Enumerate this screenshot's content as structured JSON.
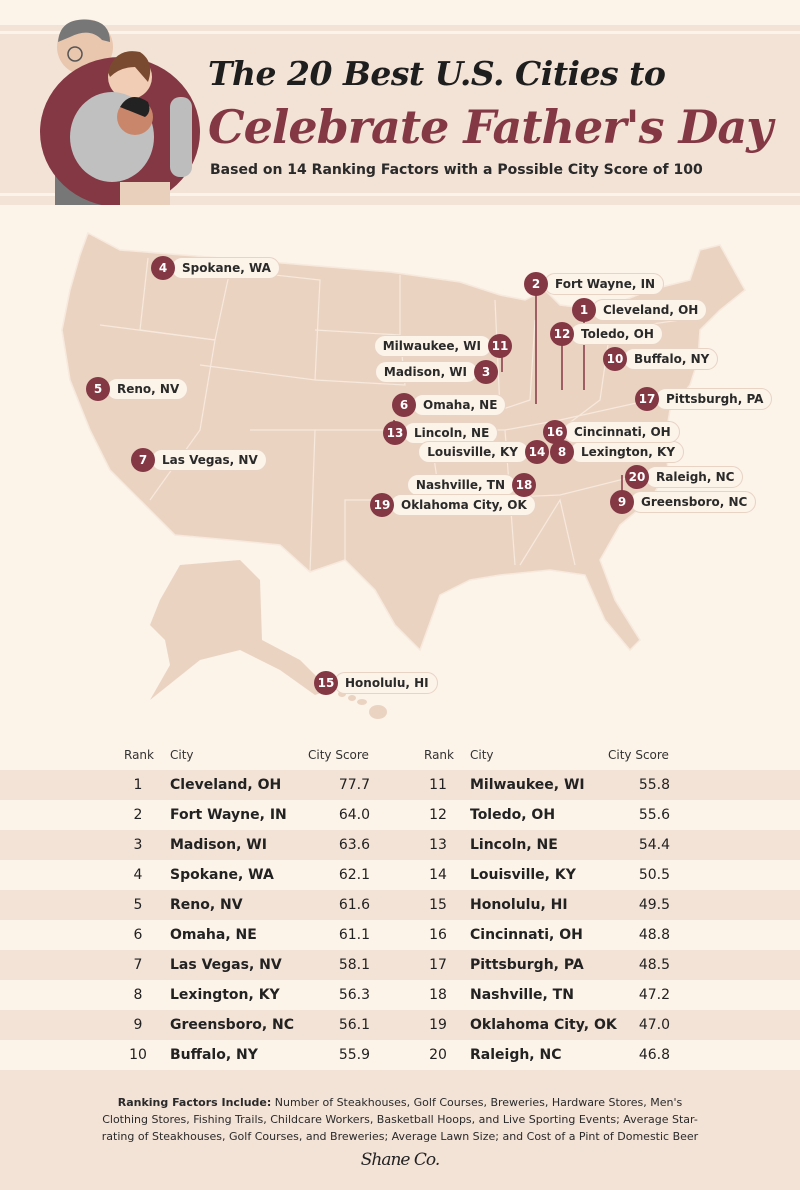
{
  "header": {
    "title_line1": "The 20 Best U.S. Cities to",
    "title_line2": "Celebrate Father's Day",
    "subtitle": "Based on 14 Ranking Factors with a Possible City Score of 100"
  },
  "colors": {
    "accent": "#833844",
    "background": "#fcf3e9",
    "band": "#f3e2d6",
    "map_fill": "#ebd3c2"
  },
  "table": {
    "headers": {
      "rank": "Rank",
      "city": "City",
      "score": "City Score"
    },
    "rows": [
      {
        "rank": "1",
        "city": "Cleveland, OH",
        "score": "77.7"
      },
      {
        "rank": "2",
        "city": "Fort Wayne, IN",
        "score": "64.0"
      },
      {
        "rank": "3",
        "city": "Madison, WI",
        "score": "63.6"
      },
      {
        "rank": "4",
        "city": "Spokane, WA",
        "score": "62.1"
      },
      {
        "rank": "5",
        "city": "Reno, NV",
        "score": "61.6"
      },
      {
        "rank": "6",
        "city": "Omaha, NE",
        "score": "61.1"
      },
      {
        "rank": "7",
        "city": "Las Vegas, NV",
        "score": "58.1"
      },
      {
        "rank": "8",
        "city": "Lexington, KY",
        "score": "56.3"
      },
      {
        "rank": "9",
        "city": "Greensboro, NC",
        "score": "56.1"
      },
      {
        "rank": "10",
        "city": "Buffalo, NY",
        "score": "55.9"
      },
      {
        "rank": "11",
        "city": "Milwaukee, WI",
        "score": "55.8"
      },
      {
        "rank": "12",
        "city": "Toledo, OH",
        "score": "55.6"
      },
      {
        "rank": "13",
        "city": "Lincoln, NE",
        "score": "54.4"
      },
      {
        "rank": "14",
        "city": "Louisville, KY",
        "score": "50.5"
      },
      {
        "rank": "15",
        "city": "Honolulu, HI",
        "score": "49.5"
      },
      {
        "rank": "16",
        "city": "Cincinnati, OH",
        "score": "48.8"
      },
      {
        "rank": "17",
        "city": "Pittsburgh, PA",
        "score": "48.5"
      },
      {
        "rank": "18",
        "city": "Nashville, TN",
        "score": "47.2"
      },
      {
        "rank": "19",
        "city": "Oklahoma City, OK",
        "score": "47.0"
      },
      {
        "rank": "20",
        "city": "Raleigh, NC",
        "score": "46.8"
      }
    ]
  },
  "footer": {
    "factors_label": "Ranking Factors Include:",
    "factors_text": "Number of Steakhouses, Golf Courses, Breweries, Hardware Stores, Men's Clothing Stores, Fishing Trails, Childcare Workers, Basketball Hoops, and Live Sporting Events; Average Star-rating of Steakhouses, Golf Courses, and Breweries; Average Lawn Size; and Cost of a Pint of Domestic Beer",
    "logo": "Shane Co."
  }
}
